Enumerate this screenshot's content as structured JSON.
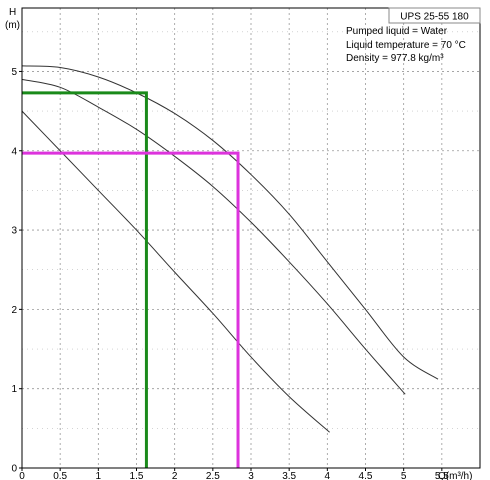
{
  "chart_data": {
    "type": "line",
    "title": "UPS 25-55 180",
    "ylabel": "H",
    "yunit": "(m)",
    "xlabel": "Q(m³/h)",
    "xlim": [
      0,
      6
    ],
    "ylim": [
      0,
      5.8
    ],
    "grid": true,
    "x_ticks": [
      {
        "value": 0,
        "label": "0"
      },
      {
        "value": 0.5,
        "label": "0.5"
      },
      {
        "value": 1,
        "label": "1"
      },
      {
        "value": 1.5,
        "label": "1.5"
      },
      {
        "value": 2,
        "label": "2"
      },
      {
        "value": 2.5,
        "label": "2.5"
      },
      {
        "value": 3,
        "label": "3"
      },
      {
        "value": 3.5,
        "label": "3.5"
      },
      {
        "value": 4,
        "label": "4"
      },
      {
        "value": 4.5,
        "label": "4.5"
      },
      {
        "value": 5,
        "label": "5"
      },
      {
        "value": 5.5,
        "label": "5.5"
      }
    ],
    "y_ticks": [
      {
        "value": 0,
        "label": "0"
      },
      {
        "value": 1,
        "label": "1"
      },
      {
        "value": 2,
        "label": "2"
      },
      {
        "value": 3,
        "label": "3"
      },
      {
        "value": 4,
        "label": "4"
      },
      {
        "value": 5,
        "label": "5"
      }
    ],
    "info_lines": [
      "Pumped liquid = Water",
      "Liquid temperature = 70 °C",
      "Density = 977.8 kg/m³"
    ],
    "series": [
      {
        "color": "#333333",
        "x": [
          0,
          0.5,
          1.0,
          1.5,
          2.0,
          2.5,
          3.0,
          3.5,
          4.0,
          4.5,
          5.0,
          5.45
        ],
        "y": [
          5.07,
          5.05,
          4.93,
          4.73,
          4.47,
          4.13,
          3.7,
          3.2,
          2.6,
          2.0,
          1.4,
          1.12
        ]
      },
      {
        "color": "#333333",
        "x": [
          0,
          0.5,
          1.0,
          1.5,
          2.0,
          2.5,
          3.0,
          3.5,
          4.0,
          4.5,
          5.02
        ],
        "y": [
          4.9,
          4.8,
          4.55,
          4.27,
          3.93,
          3.55,
          3.1,
          2.6,
          2.07,
          1.5,
          0.93
        ]
      },
      {
        "color": "#333333",
        "x": [
          0,
          0.5,
          1.0,
          1.5,
          2.0,
          2.5,
          3.0,
          3.5,
          4.03
        ],
        "y": [
          4.5,
          4.0,
          3.5,
          3.0,
          2.47,
          1.95,
          1.4,
          0.9,
          0.45
        ]
      }
    ],
    "markers": [
      {
        "color": "#1a8a1a",
        "x": 1.63,
        "y": 4.73
      },
      {
        "color": "#dd33dd",
        "x": 2.83,
        "y": 3.97
      }
    ]
  }
}
